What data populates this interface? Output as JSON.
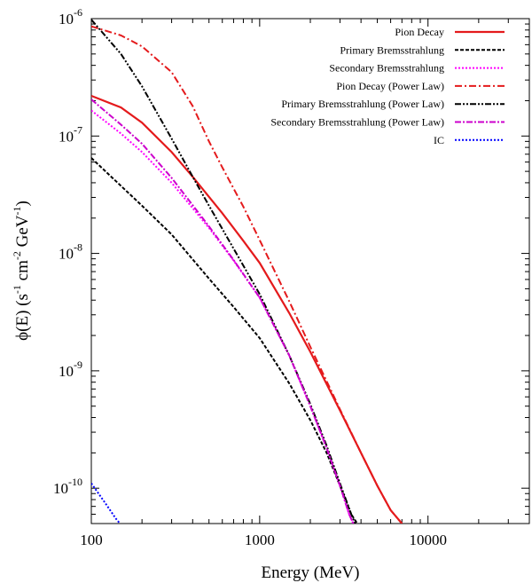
{
  "chart_data": {
    "type": "line",
    "title": "",
    "xlabel": "Energy  (MeV)",
    "ylabel_parts": [
      "ϕ(E)  (s",
      "-1",
      " cm",
      "-2",
      " GeV",
      "-1",
      ")"
    ],
    "xscale": "log",
    "yscale": "log",
    "xlim": [
      100,
      40000
    ],
    "ylim": [
      5e-11,
      1e-06
    ],
    "x_ticks": [
      {
        "value": 100,
        "label": "100"
      },
      {
        "value": 1000,
        "label": "1000"
      },
      {
        "value": 10000,
        "label": "10000"
      }
    ],
    "y_ticks": [
      {
        "value": 1e-10,
        "base": "10",
        "exp": "-10"
      },
      {
        "value": 1e-09,
        "base": "10",
        "exp": "-9"
      },
      {
        "value": 1e-08,
        "base": "10",
        "exp": "-8"
      },
      {
        "value": 1e-07,
        "base": "10",
        "exp": "-7"
      },
      {
        "value": 1e-06,
        "base": "10",
        "exp": "-6"
      }
    ],
    "legend_position": "top-right",
    "series": [
      {
        "name": "Pion Decay",
        "color": "#e41a1c",
        "dash": "none",
        "width": 2.2,
        "points": [
          [
            100,
            2.2e-07
          ],
          [
            150,
            1.75e-07
          ],
          [
            200,
            1.3e-07
          ],
          [
            300,
            7.3e-08
          ],
          [
            400,
            4.5e-08
          ],
          [
            600,
            2.2e-08
          ],
          [
            800,
            1.28e-08
          ],
          [
            1000,
            8.3e-09
          ],
          [
            1500,
            3.1e-09
          ],
          [
            2000,
            1.45e-09
          ],
          [
            3000,
            4.6e-10
          ],
          [
            4000,
            2e-10
          ],
          [
            5000,
            1.05e-10
          ],
          [
            6000,
            6.5e-11
          ],
          [
            7000,
            5e-11
          ]
        ]
      },
      {
        "name": "Primary Bremsstrahlung",
        "color": "#000000",
        "dash": "4,2",
        "width": 2,
        "points": [
          [
            100,
            6.5e-08
          ],
          [
            200,
            2.55e-08
          ],
          [
            300,
            1.45e-08
          ],
          [
            500,
            6.1e-09
          ],
          [
            700,
            3.5e-09
          ],
          [
            1000,
            1.9e-09
          ],
          [
            1500,
            7.8e-10
          ],
          [
            2000,
            3.8e-10
          ],
          [
            2500,
            2e-10
          ],
          [
            3000,
            1.05e-10
          ],
          [
            3500,
            6e-11
          ],
          [
            3800,
            5e-11
          ]
        ]
      },
      {
        "name": "Secondary Bremsstrahlung",
        "color": "#ff00ff",
        "dash": "2,2",
        "width": 2,
        "points": [
          [
            100,
            1.65e-07
          ],
          [
            150,
            1.05e-07
          ],
          [
            200,
            7.3e-08
          ],
          [
            300,
            4e-08
          ],
          [
            500,
            1.65e-08
          ],
          [
            700,
            8.7e-09
          ],
          [
            1000,
            4.2e-09
          ],
          [
            1500,
            1.35e-09
          ],
          [
            2000,
            5e-10
          ],
          [
            2500,
            2.2e-10
          ],
          [
            3000,
            1.05e-10
          ],
          [
            3400,
            6e-11
          ],
          [
            3600,
            5e-11
          ]
        ]
      },
      {
        "name": "Pion Decay (Power Law)",
        "color": "#e41a1c",
        "dash": "8,3,2,3",
        "width": 2,
        "points": [
          [
            100,
            8.6e-07
          ],
          [
            150,
            7.2e-07
          ],
          [
            200,
            5.8e-07
          ],
          [
            300,
            3.5e-07
          ],
          [
            400,
            1.8e-07
          ],
          [
            500,
            9e-08
          ],
          [
            600,
            5.4e-08
          ],
          [
            800,
            2.5e-08
          ],
          [
            1000,
            1.3e-08
          ],
          [
            1500,
            3.9e-09
          ],
          [
            2000,
            1.6e-09
          ],
          [
            3000,
            4.7e-10
          ],
          [
            4000,
            2e-10
          ],
          [
            5000,
            1.05e-10
          ],
          [
            6000,
            6.5e-11
          ],
          [
            7000,
            5e-11
          ]
        ]
      },
      {
        "name": "Primary Bremsstrahlung (Power Law)",
        "color": "#000000",
        "dash": "7,2,2,2,2,2",
        "width": 2,
        "points": [
          [
            100,
            9.8e-07
          ],
          [
            150,
            5e-07
          ],
          [
            200,
            2.65e-07
          ],
          [
            300,
            9.5e-08
          ],
          [
            400,
            4.5e-08
          ],
          [
            500,
            2.55e-08
          ],
          [
            700,
            1.1e-08
          ],
          [
            1000,
            4.5e-09
          ],
          [
            1500,
            1.35e-09
          ],
          [
            2000,
            5.2e-10
          ],
          [
            2500,
            2.3e-10
          ],
          [
            3000,
            1.1e-10
          ],
          [
            3500,
            6e-11
          ],
          [
            3700,
            5e-11
          ]
        ]
      },
      {
        "name": "Secondary Bremsstrahlung (Power Law)",
        "color": "#cc00cc",
        "dash": "7,2,2,2",
        "width": 2,
        "points": [
          [
            100,
            2.05e-07
          ],
          [
            150,
            1.25e-07
          ],
          [
            200,
            8.6e-08
          ],
          [
            300,
            4.4e-08
          ],
          [
            500,
            1.7e-08
          ],
          [
            700,
            8.8e-09
          ],
          [
            1000,
            4.2e-09
          ],
          [
            1500,
            1.35e-09
          ],
          [
            2000,
            5e-10
          ],
          [
            2500,
            2.2e-10
          ],
          [
            3000,
            1.05e-10
          ],
          [
            3400,
            6e-11
          ],
          [
            3600,
            5e-11
          ]
        ]
      },
      {
        "name": "IC",
        "color": "#0000ff",
        "dash": "2,2",
        "width": 2,
        "points": [
          [
            100,
            1.1e-10
          ],
          [
            120,
            7.6e-11
          ],
          [
            140,
            5.5e-11
          ],
          [
            148,
            5e-11
          ]
        ]
      }
    ]
  }
}
